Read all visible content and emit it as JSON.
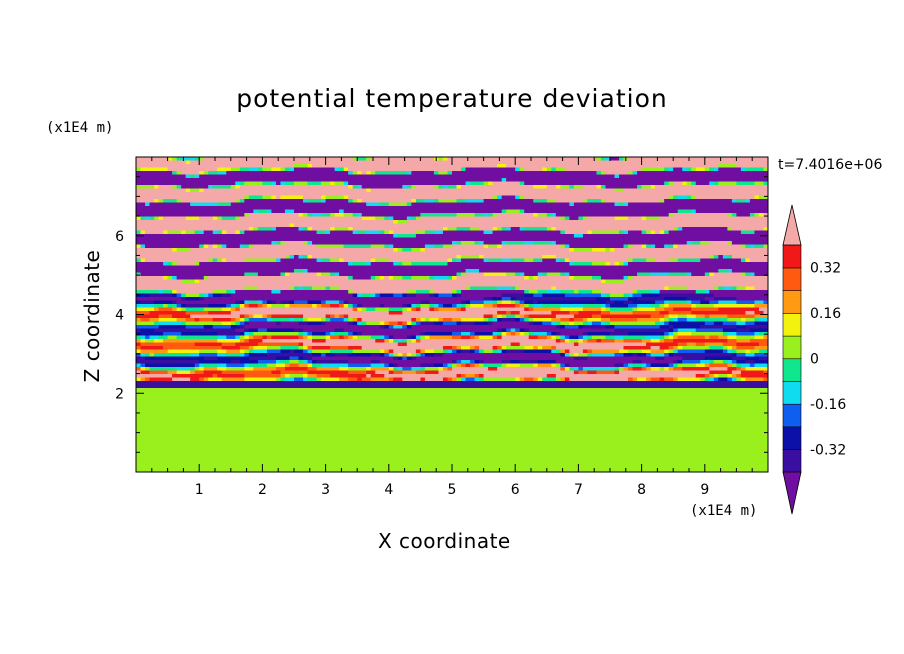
{
  "chart_data": {
    "type": "heatmap",
    "title": "potential temperature deviation",
    "xlabel": "X coordinate",
    "ylabel": "Z coordinate",
    "x_unit": "(x1E4 m)",
    "z_unit": "(x1E4 m)",
    "time_label": "t=7.4016e+06",
    "xlim": [
      0,
      10
    ],
    "ylim": [
      0,
      8
    ],
    "x_ticks": [
      "1",
      "2",
      "3",
      "4",
      "5",
      "6",
      "7",
      "8",
      "9"
    ],
    "y_ticks": [
      "2",
      "4",
      "6"
    ],
    "colorbar": {
      "labels": [
        "0.32",
        "0.16",
        "0",
        "-0.16",
        "-0.32"
      ],
      "label_values": [
        0.32,
        0.16,
        0,
        -0.16,
        -0.32
      ],
      "levels": [
        -0.4,
        -0.32,
        -0.24,
        -0.16,
        -0.08,
        0,
        0.08,
        0.16,
        0.24,
        0.32,
        0.4
      ],
      "colors": [
        "#6f0ea0",
        "#3a0ea0",
        "#0c10a8",
        "#0e5ef0",
        "#10dcf0",
        "#10e68c",
        "#9af01c",
        "#f2f20e",
        "#ff9a12",
        "#ff5a10",
        "#f01818",
        "#f5a8a8"
      ],
      "extend": "both"
    },
    "regions": [
      {
        "z_range": [
          0,
          2.2
        ],
        "description_values": [
          0,
          0.08
        ]
      },
      {
        "z_range": [
          2.2,
          8
        ],
        "description_values": [
          -0.4,
          0.4
        ]
      }
    ]
  }
}
